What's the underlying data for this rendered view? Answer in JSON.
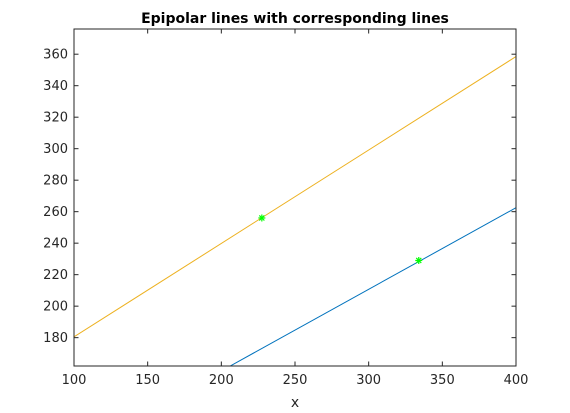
{
  "chart_data": {
    "type": "line",
    "title": "Epipolar lines with corresponding lines",
    "xlabel": "x",
    "ylabel": "",
    "xlim": [
      100,
      400
    ],
    "ylim": [
      162,
      376
    ],
    "xticks": [
      100,
      150,
      200,
      250,
      300,
      350,
      400
    ],
    "yticks": [
      180,
      200,
      220,
      240,
      260,
      280,
      300,
      320,
      340,
      360
    ],
    "grid": false,
    "box": true,
    "series": [
      {
        "color": "#edb120",
        "style": "line",
        "x": [
          100,
          400
        ],
        "y": [
          180.5,
          358.5
        ]
      },
      {
        "color": "#0072bd",
        "style": "line",
        "x": [
          206,
          400
        ],
        "y": [
          162,
          262.5
        ]
      },
      {
        "color": "#00ff00",
        "style": "marker-star",
        "x": [
          227.5,
          334
        ],
        "y": [
          256,
          229
        ]
      }
    ]
  }
}
